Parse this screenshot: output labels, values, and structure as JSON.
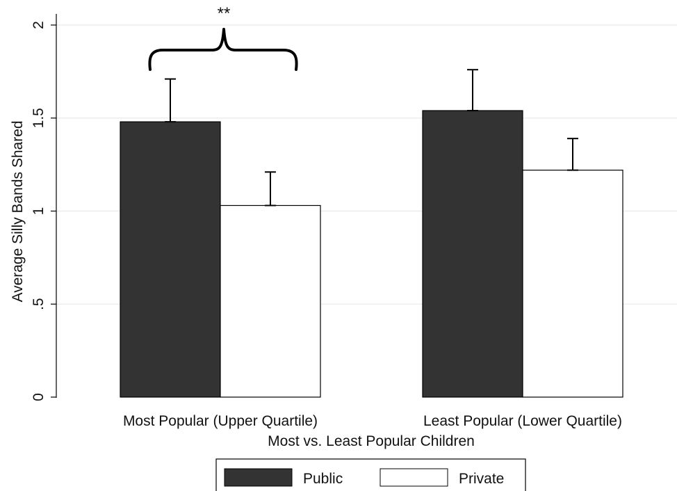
{
  "chart_data": {
    "type": "bar",
    "xlabel": "Most vs. Least Popular Children",
    "ylabel": "Average Silly Bands Shared",
    "ylim": [
      0,
      2
    ],
    "yticks": [
      0,
      0.5,
      1,
      1.5,
      2
    ],
    "ytick_labels": [
      "0",
      ".5",
      "1",
      "1.5",
      "2"
    ],
    "grid": true,
    "legend_position": "bottom",
    "categories": [
      "Most Popular (Upper Quartile)",
      "Least Popular (Lower Quartile)"
    ],
    "series": [
      {
        "name": "Public",
        "color": "#333333",
        "values": [
          1.48,
          1.54
        ],
        "error_upper": [
          1.71,
          1.76
        ]
      },
      {
        "name": "Private",
        "color": "#ffffff",
        "values": [
          1.03,
          1.22
        ],
        "error_upper": [
          1.21,
          1.39
        ]
      }
    ],
    "annotations": [
      {
        "text": "**",
        "spans_category": 0
      }
    ]
  }
}
